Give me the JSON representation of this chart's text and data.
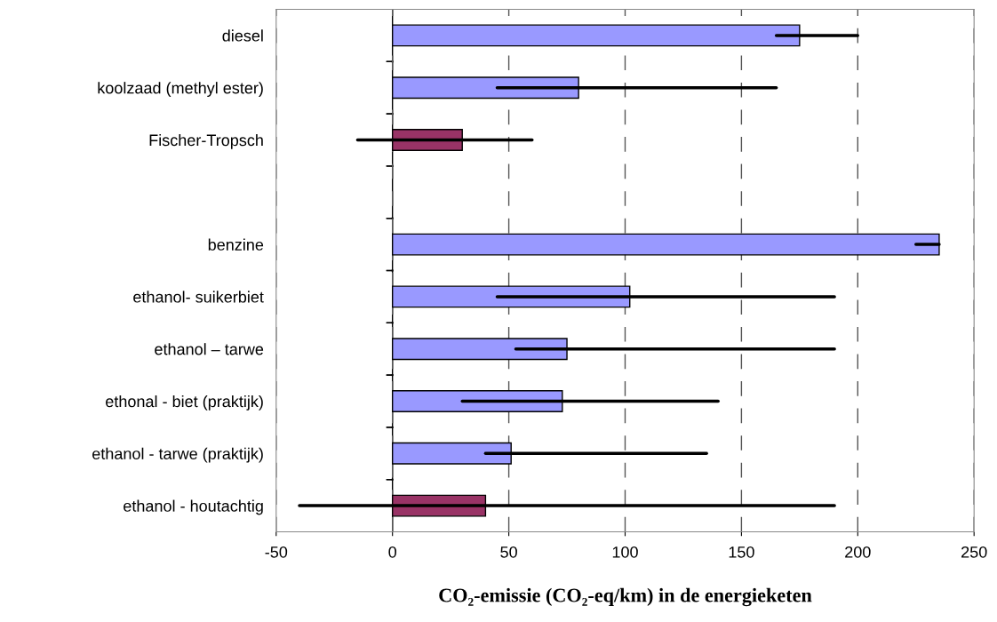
{
  "chart_data": {
    "type": "bar",
    "orientation": "horizontal",
    "xlabel": "CO₂-emissie (CO₂-eq/km) in de energieketen",
    "categories": [
      "diesel",
      "koolzaad (methyl ester)",
      "Fischer-Tropsch",
      null,
      "benzine",
      "ethanol- suikerbiet",
      "ethanol – tarwe",
      "ethonal - biet (praktijk)",
      "ethanol - tarwe (praktijk)",
      "ethanol - houtachtig"
    ],
    "values": [
      175,
      80,
      30,
      null,
      235,
      102,
      75,
      73,
      51,
      40
    ],
    "colors": [
      "#9999ff",
      "#9999ff",
      "#993366",
      null,
      "#9999ff",
      "#9999ff",
      "#9999ff",
      "#9999ff",
      "#9999ff",
      "#993366"
    ],
    "errors": [
      [
        165,
        200
      ],
      [
        45,
        165
      ],
      [
        -15,
        60
      ],
      null,
      [
        225,
        235
      ],
      [
        45,
        190
      ],
      [
        53,
        190
      ],
      [
        30,
        140
      ],
      [
        40,
        135
      ],
      [
        -40,
        190
      ]
    ],
    "xlim": [
      -50,
      250
    ],
    "xticks": [
      -50,
      0,
      50,
      100,
      150,
      200,
      250
    ],
    "grid": "x"
  }
}
